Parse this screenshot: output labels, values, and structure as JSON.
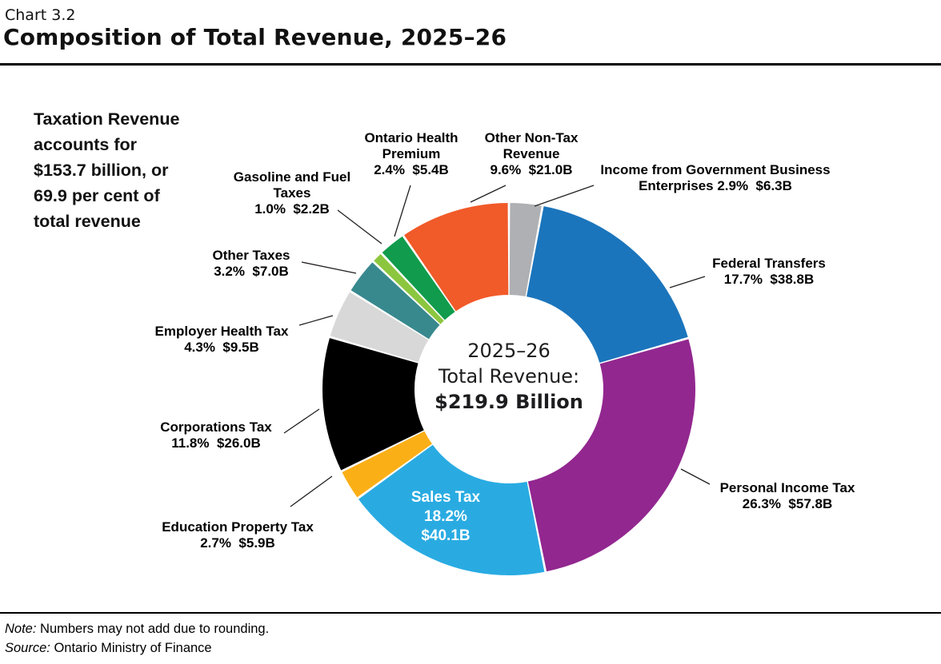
{
  "header": {
    "chart_number": "Chart 3.2",
    "title": "Composition of Total Revenue, 2025–26"
  },
  "callout_lines": [
    "Taxation Revenue",
    "accounts for",
    "$153.7 billion, or",
    "69.9 per cent of",
    "total revenue"
  ],
  "center": {
    "line1": "2025–26",
    "line2": "Total Revenue:",
    "line3": "$219.9 Billion"
  },
  "labels": {
    "gbe": [
      "Income from Government Business",
      "Enterprises 2.9%  $6.3B"
    ],
    "federal": [
      "Federal Transfers",
      "17.7%  $38.8B"
    ],
    "personal": [
      "Personal Income Tax",
      "26.3%  $57.8B"
    ],
    "sales": [
      "Sales Tax",
      "18.2%",
      "$40.1B"
    ],
    "education": [
      "Education Property Tax",
      "2.7%  $5.9B"
    ],
    "corporations": [
      "Corporations Tax",
      "11.8%  $26.0B"
    ],
    "employer": [
      "Employer Health Tax",
      "4.3%  $9.5B"
    ],
    "other_taxes": [
      "Other Taxes",
      "3.2%  $7.0B"
    ],
    "gasoline": [
      "Gasoline and Fuel",
      "Taxes",
      "1.0%  $2.2B"
    ],
    "ohp": [
      "Ontario Health",
      "Premium",
      "2.4%  $5.4B"
    ],
    "other_nontax": [
      "Other Non-Tax",
      "Revenue",
      "9.6%  $21.0B"
    ]
  },
  "notes": {
    "note_label": "Note:",
    "note_text": " Numbers may not add due to rounding.",
    "source_label": "Source:",
    "source_text": " Ontario Ministry of Finance"
  },
  "chart_data": {
    "type": "pie",
    "subtype": "donut",
    "title": "Composition of Total Revenue, 2025–26",
    "center_label": "2025–26 Total Revenue: $219.9 Billion",
    "total_billion": 219.9,
    "units": "share of total revenue (%) and $ billions",
    "start_angle_deg": 0,
    "direction": "clockwise",
    "legend": "none (external labels with leader lines)",
    "callout": "Taxation Revenue accounts for $153.7 billion, or 69.9 per cent of total revenue",
    "segments": [
      {
        "id": "income-government-business-enterprises",
        "label": "Income from Government Business Enterprises",
        "pct": 2.9,
        "value_b": 6.3,
        "color": "#aeb0b3"
      },
      {
        "id": "federal-transfers",
        "label": "Federal Transfers",
        "pct": 17.7,
        "value_b": 38.8,
        "color": "#1b75bc"
      },
      {
        "id": "personal-income-tax",
        "label": "Personal Income Tax",
        "pct": 26.3,
        "value_b": 57.8,
        "color": "#92278f"
      },
      {
        "id": "sales-tax",
        "label": "Sales Tax",
        "pct": 18.2,
        "value_b": 40.1,
        "color": "#29abe2"
      },
      {
        "id": "education-property-tax",
        "label": "Education Property Tax",
        "pct": 2.7,
        "value_b": 5.9,
        "color": "#fbaf17"
      },
      {
        "id": "corporations-tax",
        "label": "Corporations Tax",
        "pct": 11.8,
        "value_b": 26.0,
        "color": "#000000"
      },
      {
        "id": "employer-health-tax",
        "label": "Employer Health Tax",
        "pct": 4.3,
        "value_b": 9.5,
        "color": "#d8d8d8"
      },
      {
        "id": "other-taxes",
        "label": "Other Taxes",
        "pct": 3.2,
        "value_b": 7.0,
        "color": "#38898e"
      },
      {
        "id": "gasoline-and-fuel-taxes",
        "label": "Gasoline and Fuel Taxes",
        "pct": 1.0,
        "value_b": 2.2,
        "color": "#8cc63f"
      },
      {
        "id": "ontario-health-premium",
        "label": "Ontario Health Premium",
        "pct": 2.4,
        "value_b": 5.4,
        "color": "#109c4c"
      },
      {
        "id": "other-non-tax-revenue",
        "label": "Other Non-Tax Revenue",
        "pct": 9.6,
        "value_b": 21.0,
        "color": "#f15a29"
      }
    ],
    "note": "Numbers may not add due to rounding.",
    "source": "Ontario Ministry of Finance"
  }
}
